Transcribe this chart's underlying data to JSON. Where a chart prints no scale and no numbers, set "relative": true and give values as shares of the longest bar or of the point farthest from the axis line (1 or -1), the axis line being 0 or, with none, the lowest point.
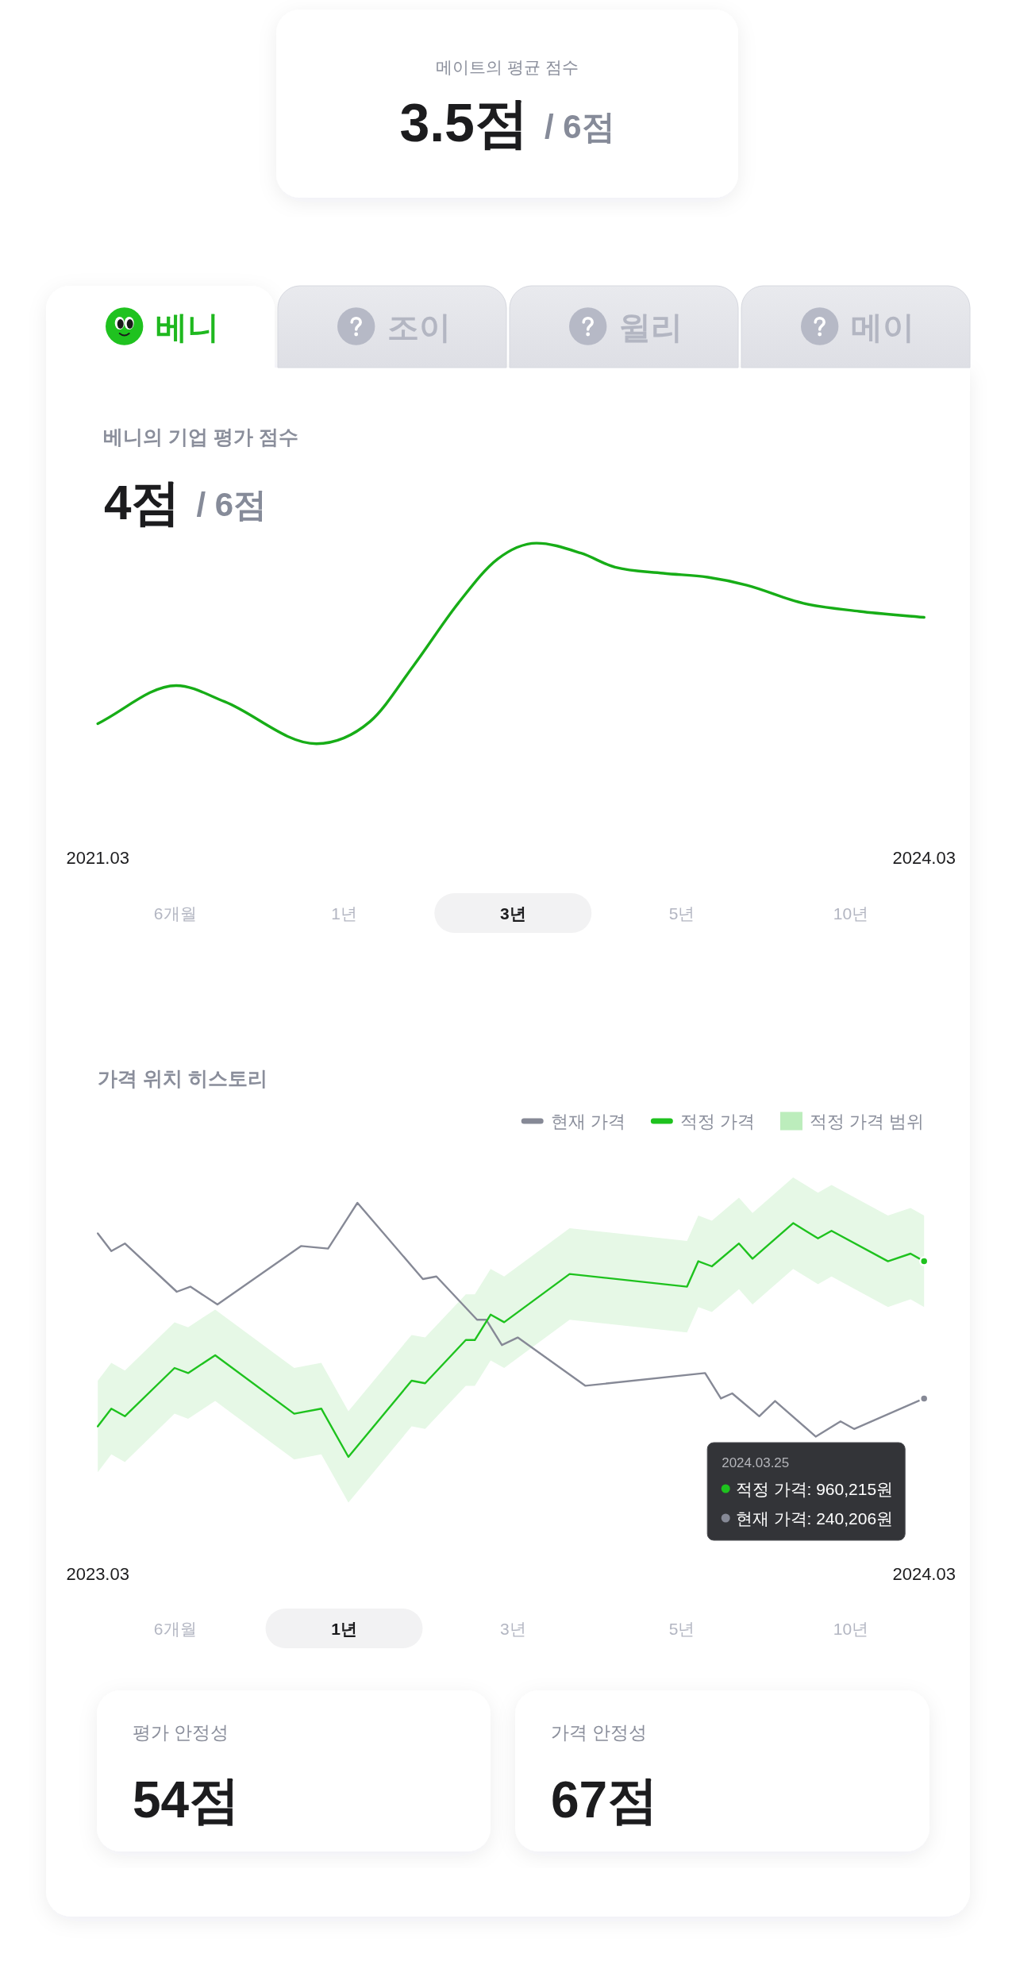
{
  "chart_data": [
    {
      "type": "other",
      "title": "메이트의 평균 점수",
      "annotations": [
        "3.5점",
        "/ 6점"
      ]
    },
    {
      "type": "other",
      "annotations": [
        "베니",
        "조이",
        "윌리",
        "메이"
      ]
    },
    {
      "type": "line",
      "title": "베니의 기업 평가 점수",
      "relative": true,
      "color": "#17ad17",
      "x": [
        "2021-03-01",
        "2021-06-13",
        "2021-08-16",
        "2021-12-16",
        "2022-02-25",
        "2022-04-24",
        "2022-06-22",
        "2022-08-13",
        "2022-10-04",
        "2022-12-02",
        "2023-01-16",
        "2023-03-21",
        "2023-05-19",
        "2023-07-10",
        "2023-09-23",
        "2023-12-06",
        "2024-03-01"
      ],
      "values": [
        0.1,
        0.29,
        0.21,
        0,
        0.11,
        0.39,
        0.7,
        0.92,
        1,
        0.95,
        0.88,
        0.85,
        0.83,
        0.79,
        0.7,
        0.66,
        0.63
      ],
      "xlim": [
        "2021-03-01",
        "2024-03-01"
      ],
      "xticks": [
        {
          "value": "2021-03-01",
          "label": "2021.03"
        },
        {
          "value": "2024-03-01",
          "label": "2024.03"
        }
      ],
      "annotations": [
        "4점",
        "/ 6점",
        "6개월",
        "1년",
        "3년",
        "5년",
        "10년"
      ]
    },
    {
      "type": "line",
      "title": "가격 위치 히스토리",
      "relative": true,
      "legend": "top right",
      "xlim": [
        "2023-03-25",
        "2024-03-25"
      ],
      "xticks": [
        {
          "value": "2023-03-25",
          "label": "2023.03"
        },
        {
          "value": "2024-03-25",
          "label": "2024.03"
        }
      ],
      "series": [
        {
          "name": "현재 가격",
          "color": "#868996",
          "x": [
            "2023-03-25",
            "2023-03-31",
            "2023-04-06",
            "2023-04-29",
            "2023-05-05",
            "2023-05-17",
            "2023-06-23",
            "2023-07-05",
            "2023-07-18",
            "2023-08-16",
            "2023-08-22",
            "2023-09-09",
            "2023-09-13",
            "2023-09-20",
            "2023-09-27",
            "2023-10-27",
            "2023-12-19",
            "2023-12-26",
            "2023-12-31",
            "2024-01-12",
            "2024-01-19",
            "2024-02-06",
            "2024-02-17",
            "2024-02-23",
            "2024-03-25"
          ],
          "values": [
            0.88,
            0.81,
            0.84,
            0.65,
            0.67,
            0.6,
            0.83,
            0.82,
            1,
            0.7,
            0.71,
            0.54,
            0.54,
            0.44,
            0.47,
            0.28,
            0.33,
            0.23,
            0.25,
            0.16,
            0.22,
            0.08,
            0.14,
            0.11,
            0.23
          ]
        },
        {
          "name": "적정 가격",
          "color": "#1ec21e",
          "x": [
            "2023-03-25",
            "2023-03-31",
            "2023-04-06",
            "2023-04-28",
            "2023-05-04",
            "2023-05-16",
            "2023-06-20",
            "2023-07-02",
            "2023-07-14",
            "2023-08-11",
            "2023-08-17",
            "2023-09-04",
            "2023-09-08",
            "2023-09-15",
            "2023-09-21",
            "2023-10-20",
            "2023-12-11",
            "2023-12-16",
            "2023-12-22",
            "2024-01-03",
            "2024-01-09",
            "2024-01-27",
            "2024-02-07",
            "2024-02-13",
            "2024-03-09",
            "2024-03-19",
            "2024-03-25"
          ],
          "values": [
            0.12,
            0.19,
            0.16,
            0.35,
            0.33,
            0.4,
            0.17,
            0.19,
            0,
            0.3,
            0.29,
            0.46,
            0.46,
            0.56,
            0.53,
            0.72,
            0.67,
            0.77,
            0.75,
            0.84,
            0.78,
            0.92,
            0.86,
            0.89,
            0.77,
            0.8,
            0.77
          ],
          "lower": [
            -0.06,
            0.01,
            -0.02,
            0.17,
            0.15,
            0.22,
            -0.01,
            0.01,
            -0.18,
            0.12,
            0.11,
            0.28,
            0.28,
            0.38,
            0.35,
            0.54,
            0.49,
            0.59,
            0.57,
            0.66,
            0.6,
            0.74,
            0.68,
            0.71,
            0.59,
            0.62,
            0.59
          ],
          "upper": [
            0.3,
            0.37,
            0.34,
            0.53,
            0.51,
            0.58,
            0.35,
            0.37,
            0.18,
            0.48,
            0.47,
            0.64,
            0.64,
            0.74,
            0.71,
            0.9,
            0.85,
            0.95,
            0.93,
            1.02,
            0.96,
            1.1,
            1.04,
            1.07,
            0.95,
            0.98,
            0.95
          ]
        }
      ],
      "annotations": [
        "2024.03.25",
        "적정 가격: 960,215원",
        "현재 가격: 240,206원",
        "적정 가격 범위",
        "6개월",
        "1년",
        "3년",
        "5년",
        "10년"
      ]
    },
    {
      "type": "other",
      "title": "평가 안정성",
      "annotations": [
        "54점"
      ]
    },
    {
      "type": "other",
      "title": "가격 안정성",
      "annotations": [
        "67점"
      ]
    }
  ]
}
